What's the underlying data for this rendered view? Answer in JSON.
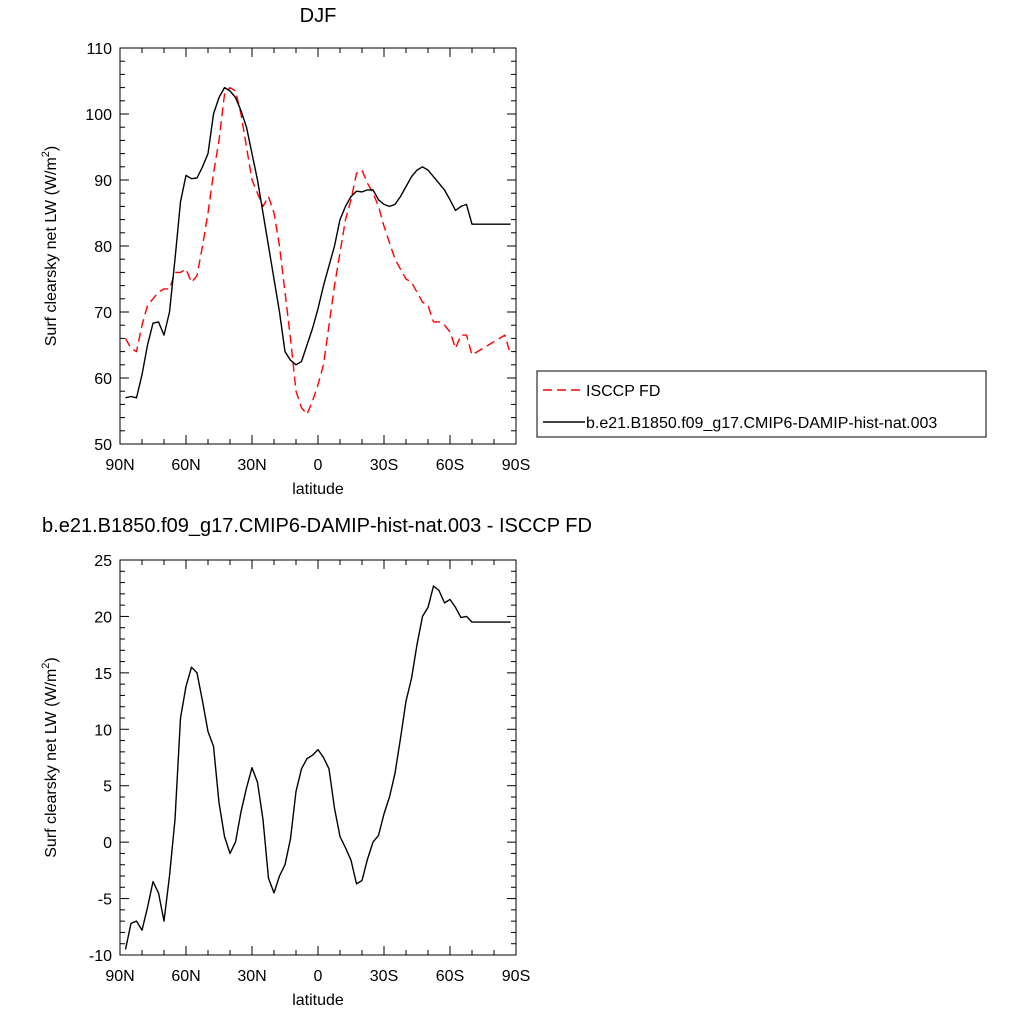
{
  "chart_data": [
    {
      "type": "line",
      "title": "DJF",
      "xlabel": "latitude",
      "ylabel": "Surf clearsky net LW (W/m",
      "ylabel_sup": "2",
      "ylabel_end": ")",
      "xlim": [
        -90,
        90
      ],
      "ylim": [
        50,
        110
      ],
      "xticks": [
        -90,
        -60,
        -30,
        0,
        30,
        60,
        90
      ],
      "xtick_labels": [
        "90N",
        "60N",
        "30N",
        "0",
        "30S",
        "60S",
        "90S"
      ],
      "yticks": [
        50,
        60,
        70,
        80,
        90,
        100,
        110
      ],
      "ytick_labels": [
        "50",
        "60",
        "70",
        "80",
        "90",
        "100",
        "110"
      ],
      "grid": false,
      "legend_position": "right",
      "series": [
        {
          "name": "ISCCP FD",
          "color": "#ff0000",
          "dash": "dashed",
          "x": [
            -87.5,
            -85,
            -82.5,
            -80,
            -77.5,
            -75,
            -72.5,
            -70,
            -67.5,
            -65,
            -62.5,
            -60,
            -57.5,
            -55,
            -52.5,
            -50,
            -47.5,
            -45,
            -42.5,
            -40,
            -37.5,
            -35,
            -32.5,
            -30,
            -27.5,
            -25,
            -22.5,
            -20,
            -17.5,
            -15,
            -12.5,
            -10,
            -7.5,
            -5,
            -2.5,
            0,
            2.5,
            5,
            7.5,
            10,
            12.5,
            15,
            17.5,
            20,
            22.5,
            25,
            27.5,
            30,
            32.5,
            35,
            37.5,
            40,
            42.5,
            45,
            47.5,
            50,
            52.5,
            55,
            57.5,
            60,
            62.5,
            65,
            67.5,
            70,
            72.5,
            75,
            77.5,
            80,
            82.5,
            85,
            87.5
          ],
          "y": [
            66,
            64.5,
            64,
            68,
            71,
            72,
            73,
            73.5,
            73.5,
            76,
            76,
            76.5,
            74.5,
            75.5,
            80,
            85,
            91,
            96,
            103,
            104,
            103.5,
            100,
            95,
            90,
            88,
            86,
            87.5,
            85,
            80,
            73,
            66,
            58,
            55.5,
            54.5,
            56.5,
            59,
            62,
            68,
            74,
            79,
            84,
            87,
            91,
            91.5,
            89.5,
            88,
            86,
            83,
            80.5,
            78,
            76.5,
            75,
            74.5,
            73,
            71.5,
            71,
            68.5,
            68.5,
            68,
            67,
            64.5,
            66.5,
            66.5,
            63.5,
            64,
            64.5,
            65,
            65.5,
            66,
            66.5,
            63.5
          ]
        },
        {
          "name": "b.e21.B1850.f09_g17.CMIP6-DAMIP-hist-nat.003",
          "color": "#000000",
          "dash": "solid",
          "x": [
            -87.5,
            -85,
            -82.5,
            -80,
            -77.5,
            -75,
            -72.5,
            -70,
            -67.5,
            -65,
            -62.5,
            -60,
            -57.5,
            -55,
            -52.5,
            -50,
            -47.5,
            -45,
            -42.5,
            -40,
            -37.5,
            -35,
            -32.5,
            -30,
            -27.5,
            -25,
            -22.5,
            -20,
            -17.5,
            -15,
            -12.5,
            -10,
            -7.5,
            -5,
            -2.5,
            0,
            2.5,
            5,
            7.5,
            10,
            12.5,
            15,
            17.5,
            20,
            22.5,
            25,
            27.5,
            30,
            32.5,
            35,
            37.5,
            40,
            42.5,
            45,
            47.5,
            50,
            52.5,
            55,
            57.5,
            60,
            62.5,
            65,
            67.5,
            70,
            72.5,
            75,
            77.5,
            80,
            82.5,
            85,
            87.5
          ],
          "y": [
            57,
            57.2,
            57,
            60.5,
            65,
            68.3,
            68.5,
            66.5,
            70,
            78,
            86.7,
            90.7,
            90.2,
            90.3,
            92,
            94,
            100,
            102.5,
            104,
            103.5,
            102.5,
            100.5,
            98,
            94,
            90,
            85,
            80,
            75,
            70,
            64,
            62.7,
            62,
            62.5,
            65,
            67.5,
            70.5,
            74,
            77,
            80,
            84,
            86,
            87.5,
            88.3,
            88.2,
            88.5,
            88.5,
            87,
            86.3,
            86,
            86.3,
            87.5,
            89,
            90.5,
            91.5,
            92,
            91.5,
            90.5,
            89.5,
            88.5,
            87,
            85.4,
            86,
            86.3,
            83.3,
            83.3,
            83.3,
            83.3,
            83.3,
            83.3,
            83.3,
            83.3
          ]
        }
      ]
    },
    {
      "type": "line",
      "title": "b.e21.B1850.f09_g17.CMIP6-DAMIP-hist-nat.003 - ISCCP FD",
      "xlabel": "latitude",
      "ylabel": "Surf clearsky net LW (W/m",
      "ylabel_sup": "2",
      "ylabel_end": ")",
      "xlim": [
        -90,
        90
      ],
      "ylim": [
        -10,
        25
      ],
      "xticks": [
        -90,
        -60,
        -30,
        0,
        30,
        60,
        90
      ],
      "xtick_labels": [
        "90N",
        "60N",
        "30N",
        "0",
        "30S",
        "60S",
        "90S"
      ],
      "yticks": [
        -10,
        -5,
        0,
        5,
        10,
        15,
        20,
        25
      ],
      "ytick_labels": [
        "-10",
        "-5",
        "0",
        "5",
        "10",
        "15",
        "20",
        "25"
      ],
      "grid": false,
      "series": [
        {
          "color": "#000000",
          "dash": "solid",
          "x": [
            -87.5,
            -85,
            -82.5,
            -80,
            -77.5,
            -75,
            -72.5,
            -70,
            -67.5,
            -65,
            -62.5,
            -60,
            -57.5,
            -55,
            -52.5,
            -50,
            -47.5,
            -45,
            -42.5,
            -40,
            -37.5,
            -35,
            -32.5,
            -30,
            -27.5,
            -25,
            -22.5,
            -20,
            -17.5,
            -15,
            -12.5,
            -10,
            -7.5,
            -5,
            -2.5,
            0,
            2.5,
            5,
            7.5,
            10,
            12.5,
            15,
            17.5,
            20,
            22.5,
            25,
            27.5,
            30,
            32.5,
            35,
            37.5,
            40,
            42.5,
            45,
            47.5,
            50,
            52.5,
            55,
            57.5,
            60,
            62.5,
            65,
            67.5,
            70,
            72.5,
            75,
            77.5,
            80,
            82.5,
            85,
            87.5
          ],
          "y": [
            -9.5,
            -7.2,
            -7,
            -7.8,
            -5.8,
            -3.5,
            -4.5,
            -7,
            -3,
            2,
            11,
            13.8,
            15.5,
            15,
            12.5,
            9.8,
            8.5,
            3.5,
            0.5,
            -1,
            0,
            2.7,
            4.8,
            6.6,
            5.3,
            2,
            -3.2,
            -4.5,
            -3,
            -2,
            0.3,
            4.5,
            6.5,
            7.4,
            7.7,
            8.2,
            7.5,
            6.5,
            3,
            0.5,
            -0.5,
            -1.6,
            -3.7,
            -3.4,
            -1.5,
            0,
            0.6,
            2.5,
            4,
            6.1,
            9.2,
            12.5,
            14.5,
            17.5,
            20,
            20.8,
            22.7,
            22.3,
            21.2,
            21.5,
            20.8,
            19.9,
            20,
            19.5,
            19.5,
            19.5,
            19.5,
            19.5,
            19.5,
            19.5,
            19.5
          ]
        }
      ]
    }
  ]
}
